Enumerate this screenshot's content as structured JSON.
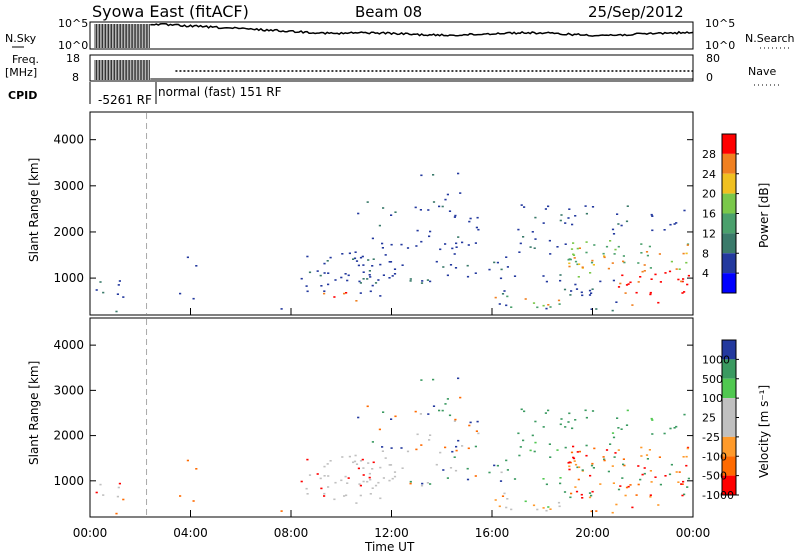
{
  "header": {
    "title": "Syowa East (fitACF)",
    "beam": "Beam 08",
    "date": "25/Sep/2012"
  },
  "params": {
    "nsky_label": "N.Sky",
    "nsearch_label": "N.Search",
    "freq_label": "Freq.",
    "freq_unit": "[MHz]",
    "nave_label": "Nave",
    "cpid_label": "CPID",
    "log_ticks_left": [
      "10^5",
      "10^0"
    ],
    "log_ticks_right": [
      "10^5",
      "10^0"
    ],
    "freq_ticks": [
      "18",
      "8"
    ],
    "nave_ticks": [
      "80",
      "0"
    ],
    "cpid_segments": [
      "-5261 RF",
      "normal (fast) 151 RF"
    ]
  },
  "colors": {
    "power": [
      "#0000ff",
      "#23399e",
      "#3a7a6a",
      "#4aa06c",
      "#7ac84a",
      "#f0c020",
      "#f08020",
      "#ff0000"
    ],
    "velocity": [
      "#ff0000",
      "#ff6a00",
      "#ff9a2a",
      "#c0c0c0",
      "#c0c0c0",
      "#50c850",
      "#3a9a60",
      "#23399e"
    ]
  },
  "chart_data": [
    {
      "type": "heatmap",
      "name": "power",
      "ylabel": "Slant Range [km]",
      "ylim": [
        200,
        4600
      ],
      "yticks": [
        1000,
        2000,
        3000,
        4000
      ],
      "xlim_hours": [
        0,
        24
      ],
      "colorbar_label": "Power [dB]",
      "colorbar_ticks": [
        "4",
        "8",
        "12",
        "16",
        "20",
        "24",
        "28"
      ],
      "dashed_marker_hours": 2.25
    },
    {
      "type": "heatmap",
      "name": "velocity",
      "ylabel": "Slant Range [km]",
      "ylim": [
        200,
        4600
      ],
      "yticks": [
        1000,
        2000,
        3000,
        4000
      ],
      "xlim_hours": [
        0,
        24
      ],
      "xlabel": "Time UT",
      "xticks": [
        "00:00",
        "04:00",
        "08:00",
        "12:00",
        "16:00",
        "20:00",
        "00:00"
      ],
      "colorbar_label": "Velocity [m s⁻¹]",
      "colorbar_ticks": [
        "1000",
        "500",
        "100",
        "25",
        "-25",
        "-100",
        "-500",
        "-1000"
      ],
      "dashed_marker_hours": 2.25
    }
  ]
}
